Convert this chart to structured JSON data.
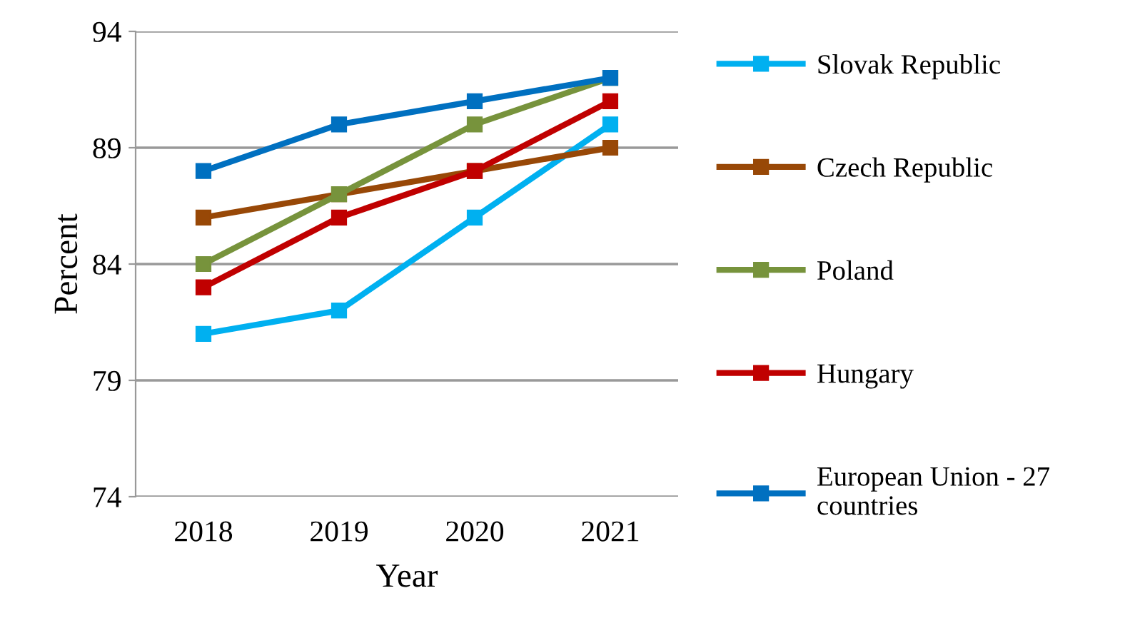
{
  "chart_data": {
    "type": "line",
    "xlabel": "Year",
    "ylabel": "Percent",
    "categories": [
      "2018",
      "2019",
      "2020",
      "2021"
    ],
    "series": [
      {
        "name": "Slovak Republic",
        "color": "#00b0f0",
        "values": [
          81,
          82,
          86,
          90
        ]
      },
      {
        "name": "Czech Republic",
        "color": "#984807",
        "values": [
          86,
          87,
          88,
          89
        ]
      },
      {
        "name": "Poland",
        "color": "#77933c",
        "values": [
          84,
          87,
          90,
          92
        ]
      },
      {
        "name": "Hungary",
        "color": "#c00000",
        "values": [
          83,
          86,
          88,
          91
        ]
      },
      {
        "name": "European Union - 27\ncountries",
        "color": "#0070c0",
        "values": [
          88,
          90,
          91,
          92
        ]
      }
    ],
    "ylim": [
      74,
      94
    ],
    "yticks": [
      74,
      79,
      84,
      89,
      94
    ],
    "grid": "y",
    "legend": "right",
    "marker": "square",
    "line_style": "solid"
  }
}
